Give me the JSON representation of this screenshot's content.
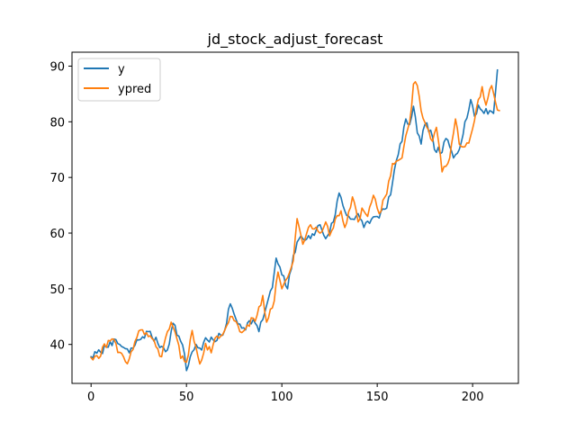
{
  "chart_data": {
    "type": "line",
    "title": "jd_stock_adjust_forecast",
    "xlabel": "",
    "ylabel": "",
    "xlim": [
      -10,
      224
    ],
    "ylim": [
      33,
      92.5
    ],
    "x_ticks": [
      0,
      50,
      100,
      150,
      200
    ],
    "y_ticks": [
      40,
      50,
      60,
      70,
      80,
      90
    ],
    "grid": false,
    "legend_position": "top-left",
    "series": [
      {
        "name": "y",
        "color": "#1f77b4",
        "anchors": [
          [
            0,
            37.8
          ],
          [
            5,
            38.6
          ],
          [
            10,
            40.5
          ],
          [
            15,
            40.0
          ],
          [
            20,
            38.5
          ],
          [
            25,
            40.8
          ],
          [
            30,
            42.3
          ],
          [
            35,
            40.2
          ],
          [
            40,
            39.0
          ],
          [
            43,
            43.8
          ],
          [
            46,
            41.5
          ],
          [
            49,
            38.2
          ],
          [
            50,
            35.3
          ],
          [
            52,
            37.8
          ],
          [
            55,
            40.0
          ],
          [
            58,
            39.0
          ],
          [
            60,
            41.2
          ],
          [
            65,
            40.5
          ],
          [
            70,
            42.5
          ],
          [
            73,
            47.3
          ],
          [
            76,
            44.5
          ],
          [
            80,
            43.0
          ],
          [
            85,
            44.5
          ],
          [
            88,
            42.3
          ],
          [
            92,
            47.0
          ],
          [
            95,
            50.2
          ],
          [
            97,
            55.5
          ],
          [
            100,
            52.5
          ],
          [
            103,
            50.0
          ],
          [
            106,
            56.0
          ],
          [
            110,
            59.5
          ],
          [
            115,
            59.0
          ],
          [
            120,
            61.5
          ],
          [
            123,
            59.0
          ],
          [
            127,
            62.0
          ],
          [
            130,
            67.2
          ],
          [
            133,
            64.0
          ],
          [
            136,
            62.5
          ],
          [
            140,
            63.5
          ],
          [
            143,
            61.0
          ],
          [
            147,
            62.5
          ],
          [
            150,
            63.0
          ],
          [
            155,
            64.5
          ],
          [
            158,
            69.0
          ],
          [
            160,
            73.0
          ],
          [
            163,
            76.5
          ],
          [
            165,
            80.5
          ],
          [
            167,
            79.5
          ],
          [
            169,
            82.8
          ],
          [
            171,
            78.0
          ],
          [
            173,
            76.0
          ],
          [
            175,
            79.5
          ],
          [
            178,
            78.5
          ],
          [
            180,
            75.0
          ],
          [
            184,
            74.5
          ],
          [
            186,
            77.0
          ],
          [
            188,
            75.5
          ],
          [
            190,
            73.5
          ],
          [
            193,
            75.0
          ],
          [
            196,
            80.0
          ],
          [
            199,
            84.0
          ],
          [
            201,
            81.0
          ],
          [
            203,
            83.0
          ],
          [
            206,
            81.5
          ],
          [
            209,
            82.0
          ],
          [
            211,
            81.5
          ],
          [
            213,
            89.3
          ]
        ]
      },
      {
        "name": "ypred",
        "color": "#ff7f0e",
        "anchors": [
          [
            0,
            37.6
          ],
          [
            4,
            37.5
          ],
          [
            6,
            39.5
          ],
          [
            11,
            41.0
          ],
          [
            15,
            38.6
          ],
          [
            18,
            36.9
          ],
          [
            20,
            37.4
          ],
          [
            23,
            40.5
          ],
          [
            26,
            42.6
          ],
          [
            30,
            41.4
          ],
          [
            35,
            39.2
          ],
          [
            37,
            37.8
          ],
          [
            40,
            42.3
          ],
          [
            42,
            44.0
          ],
          [
            45,
            41.0
          ],
          [
            47,
            37.5
          ],
          [
            50,
            36.8
          ],
          [
            53,
            42.5
          ],
          [
            55,
            39.5
          ],
          [
            57,
            36.5
          ],
          [
            60,
            40.2
          ],
          [
            63,
            38.5
          ],
          [
            66,
            41.5
          ],
          [
            70,
            42.5
          ],
          [
            74,
            45.0
          ],
          [
            78,
            42.3
          ],
          [
            82,
            43.5
          ],
          [
            87,
            45.2
          ],
          [
            90,
            48.8
          ],
          [
            92,
            44.0
          ],
          [
            96,
            47.8
          ],
          [
            98,
            53.0
          ],
          [
            100,
            50.0
          ],
          [
            103,
            52.0
          ],
          [
            106,
            55.0
          ],
          [
            108,
            62.6
          ],
          [
            111,
            58.0
          ],
          [
            115,
            61.5
          ],
          [
            120,
            60.0
          ],
          [
            123,
            62.0
          ],
          [
            125,
            59.5
          ],
          [
            128,
            62.5
          ],
          [
            131,
            64.0
          ],
          [
            133,
            61.0
          ],
          [
            137,
            66.5
          ],
          [
            140,
            62.0
          ],
          [
            142,
            64.5
          ],
          [
            145,
            63.0
          ],
          [
            148,
            66.8
          ],
          [
            151,
            63.5
          ],
          [
            155,
            67.0
          ],
          [
            158,
            72.5
          ],
          [
            163,
            73.5
          ],
          [
            165,
            77.5
          ],
          [
            167,
            80.0
          ],
          [
            169,
            86.8
          ],
          [
            171,
            86.5
          ],
          [
            173,
            82.0
          ],
          [
            176,
            79.0
          ],
          [
            179,
            76.5
          ],
          [
            181,
            79.0
          ],
          [
            184,
            71.0
          ],
          [
            186,
            72.0
          ],
          [
            188,
            73.5
          ],
          [
            191,
            80.5
          ],
          [
            193,
            76.0
          ],
          [
            196,
            75.5
          ],
          [
            199,
            77.5
          ],
          [
            203,
            84.0
          ],
          [
            205,
            86.3
          ],
          [
            207,
            83.0
          ],
          [
            210,
            86.5
          ],
          [
            212,
            83.5
          ],
          [
            214,
            82.0
          ]
        ]
      }
    ]
  }
}
